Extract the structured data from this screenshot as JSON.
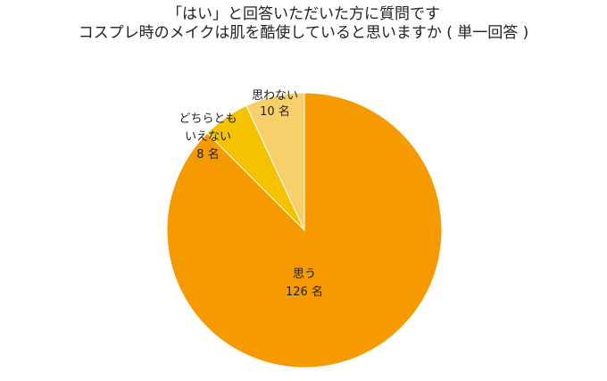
{
  "chart_data": {
    "type": "pie",
    "title_lines": [
      "「はい」と回答いただいた方に質問です",
      "コスプレ時のメイクは肌を酷使していると思いますか ( 単一回答 )"
    ],
    "slices": [
      {
        "label": "思う",
        "value": 126,
        "value_label": "126 名",
        "color": "#F59A00"
      },
      {
        "label": "どちらとも いえない",
        "value": 8,
        "value_label": "8 名",
        "color": "#F5C200"
      },
      {
        "label": "思わない",
        "value": 10,
        "value_label": "10 名",
        "color": "#F8D06B"
      }
    ],
    "start_angle_deg": 0,
    "direction": "counterclockwise-from-top-for-small-slices"
  }
}
